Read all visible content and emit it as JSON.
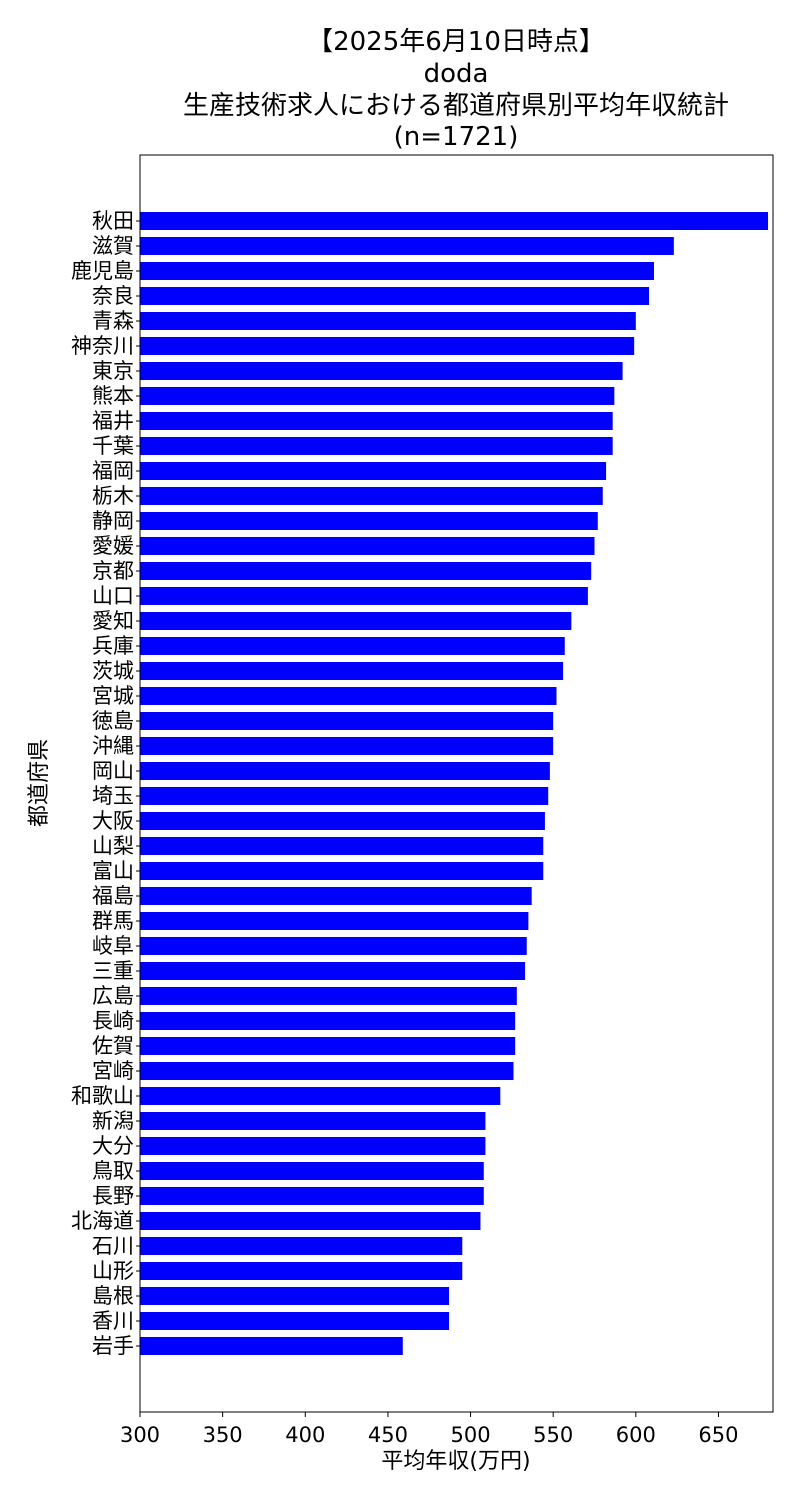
{
  "chart_data": {
    "type": "bar",
    "orientation": "horizontal",
    "title_lines": [
      "【2025年6月10日時点】",
      "doda",
      "生産技術求人における都道府県別平均年収統計",
      "(n=1721)"
    ],
    "xlabel": "平均年収(万円)",
    "ylabel": "都道府県",
    "xlim": [
      300,
      683
    ],
    "xticks": [
      300,
      350,
      400,
      450,
      500,
      550,
      600,
      650
    ],
    "grid": false,
    "bar_color": "#0000ff",
    "categories": [
      "秋田",
      "滋賀",
      "鹿児島",
      "奈良",
      "青森",
      "神奈川",
      "東京",
      "熊本",
      "福井",
      "千葉",
      "福岡",
      "栃木",
      "静岡",
      "愛媛",
      "京都",
      "山口",
      "愛知",
      "兵庫",
      "茨城",
      "宮城",
      "徳島",
      "沖縄",
      "岡山",
      "埼玉",
      "大阪",
      "山梨",
      "富山",
      "福島",
      "群馬",
      "岐阜",
      "三重",
      "広島",
      "長崎",
      "佐賀",
      "宮崎",
      "和歌山",
      "新潟",
      "大分",
      "鳥取",
      "長野",
      "北海道",
      "石川",
      "山形",
      "島根",
      "香川",
      "岩手"
    ],
    "values": [
      680,
      623,
      611,
      608,
      600,
      599,
      592,
      587,
      586,
      586,
      582,
      580,
      577,
      575,
      573,
      571,
      561,
      557,
      556,
      552,
      550,
      550,
      548,
      547,
      545,
      544,
      544,
      537,
      535,
      534,
      533,
      528,
      527,
      527,
      526,
      518,
      509,
      509,
      508,
      508,
      506,
      495,
      495,
      487,
      487,
      459
    ]
  }
}
